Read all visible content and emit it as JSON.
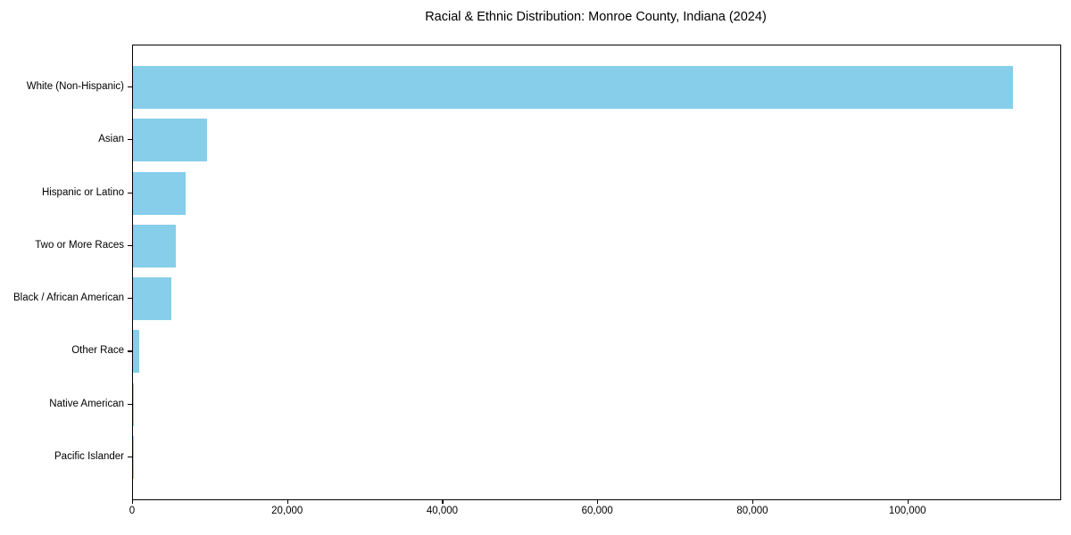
{
  "chart_data": {
    "type": "bar",
    "orientation": "horizontal",
    "title": "Racial & Ethnic Distribution: Monroe County, Indiana (2024)",
    "categories": [
      "White (Non-Hispanic)",
      "Asian",
      "Hispanic or Latino",
      "Two or More Races",
      "Black / African American",
      "Other Race",
      "Native American",
      "Pacific Islander"
    ],
    "values": [
      113500,
      9600,
      6800,
      5500,
      5000,
      750,
      100,
      30
    ],
    "bar_color": "#87CEEB",
    "xlabel": "",
    "ylabel": "",
    "xlim": [
      0,
      119600
    ],
    "x_ticks": [
      0,
      20000,
      40000,
      60000,
      80000,
      100000
    ],
    "x_tick_labels": [
      "0",
      "20,000",
      "40,000",
      "60,000",
      "80,000",
      "100,000"
    ],
    "grid": false,
    "legend": null
  }
}
